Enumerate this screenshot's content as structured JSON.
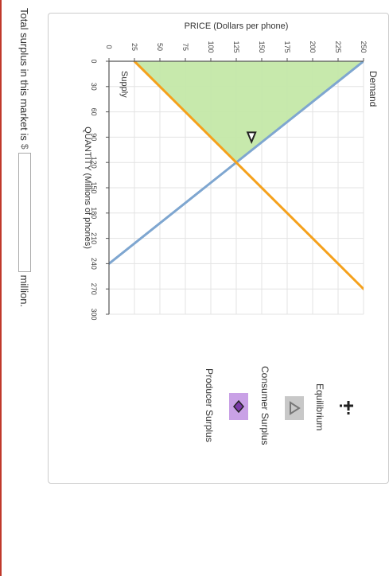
{
  "question": {
    "prefix": "Total surplus in this market is",
    "currency": "$",
    "answer_value": "",
    "suffix": "million."
  },
  "tools": {
    "equilibrium_label": "Equilibrium",
    "consumer_surplus_label": "Consumer Surplus",
    "producer_surplus_label": "Producer Surplus"
  },
  "chart_data": {
    "type": "line",
    "xlabel": "QUANTITY (Millions of phones)",
    "ylabel": "PRICE (Dollars per phone)",
    "xlim": [
      0,
      300
    ],
    "ylim": [
      0,
      250
    ],
    "xticks": [
      0,
      30,
      60,
      90,
      120,
      150,
      180,
      210,
      240,
      270,
      300
    ],
    "yticks": [
      0,
      25,
      50,
      75,
      100,
      125,
      150,
      175,
      200,
      225,
      250
    ],
    "grid": true,
    "series": [
      {
        "name": "Demand",
        "x": [
          0,
          240
        ],
        "y": [
          250,
          0
        ],
        "color": "#7ea6d0"
      },
      {
        "name": "Supply",
        "x": [
          0,
          270
        ],
        "y": [
          25,
          250
        ],
        "color": "#f5a11c"
      }
    ],
    "consumer_surplus_polygon": {
      "x": [
        0,
        0,
        120
      ],
      "y": [
        25,
        250,
        125
      ],
      "color": "#c4e8a8"
    },
    "marker": {
      "x": 90,
      "y": 140
    },
    "colors": {
      "consumer_surplus_tool": "#c8c8c8",
      "producer_surplus_tool": "#c9a1e6"
    }
  }
}
